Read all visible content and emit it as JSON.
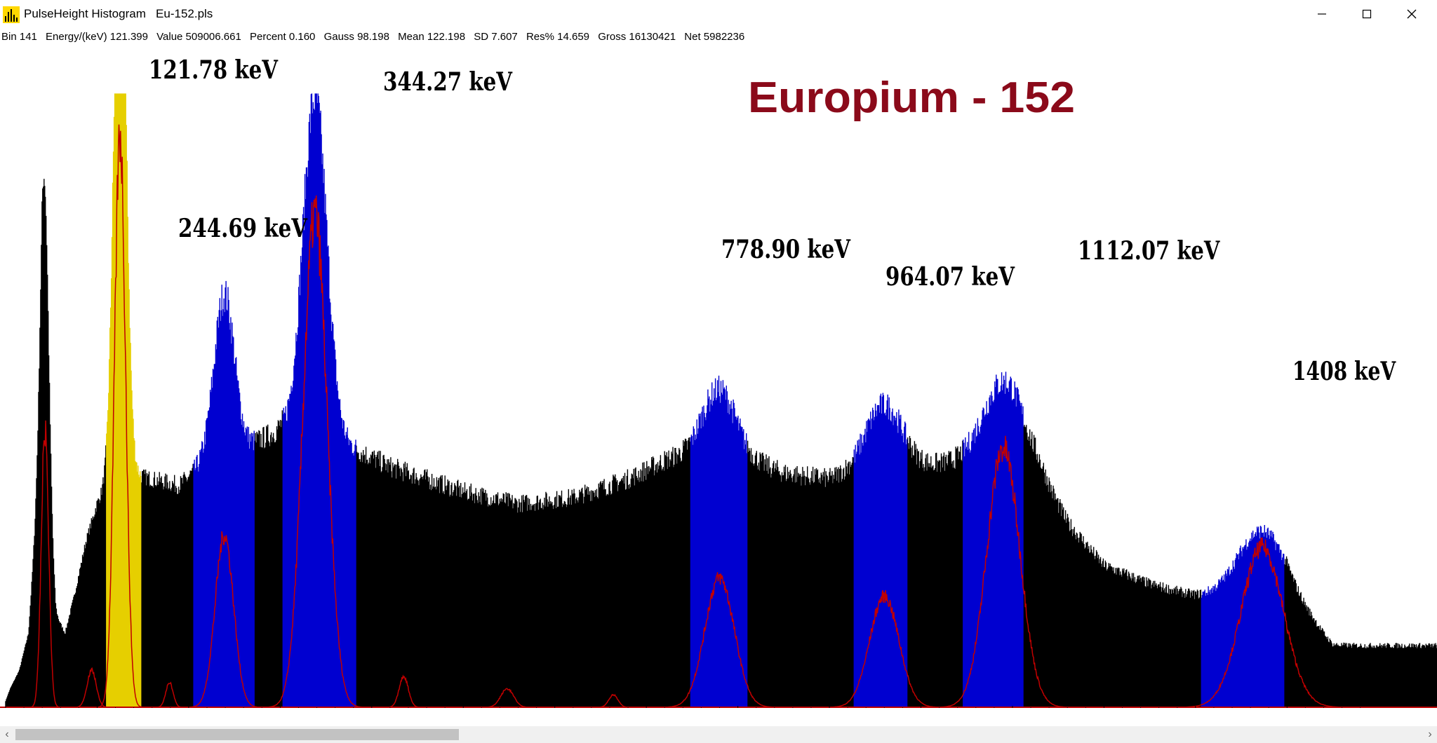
{
  "window": {
    "app_name": "PulseHeight Histogram",
    "file_name": "Eu-152.pls",
    "controls": {
      "minimize": "minimize-icon",
      "maximize": "maximize-icon",
      "close": "close-icon"
    }
  },
  "status": {
    "bin": "Bin 141",
    "energy": "Energy/(keV) 121.399",
    "value": "Value 509006.661",
    "percent": "Percent 0.160",
    "gauss": "Gauss 98.198",
    "mean": "Mean 122.198",
    "sd": "SD 7.607",
    "res": "Res% 14.659",
    "gross": "Gross 16130421",
    "net": "Net 5982236"
  },
  "colors": {
    "background": "#ffffff",
    "spectrum": "#000000",
    "roi": "#0000d0",
    "selected_roi": "#e6cf00",
    "fit_curve": "#c00000",
    "title": "#8b0a1a"
  },
  "chart_data": {
    "type": "area",
    "title": "Europium - 152",
    "xlim": [
      0,
      1450
    ],
    "x_ticks": [
      "0",
      "100",
      "200",
      "300",
      "400",
      "500",
      "600",
      "700",
      "800",
      "900",
      "1000",
      "1100",
      "1200",
      "1300",
      "1400"
    ],
    "x_tick_values": [
      0,
      100,
      200,
      300,
      400,
      500,
      600,
      700,
      800,
      900,
      1000,
      1100,
      1200,
      1300,
      1400
    ],
    "continuum": [
      [
        0,
        0.01
      ],
      [
        5,
        0.03
      ],
      [
        15,
        0.06
      ],
      [
        25,
        0.12
      ],
      [
        34,
        0.32
      ],
      [
        40,
        0.45
      ],
      [
        47,
        0.28
      ],
      [
        55,
        0.15
      ],
      [
        65,
        0.12
      ],
      [
        75,
        0.18
      ],
      [
        88,
        0.27
      ],
      [
        100,
        0.33
      ],
      [
        115,
        0.37
      ],
      [
        135,
        0.38
      ],
      [
        160,
        0.37
      ],
      [
        190,
        0.36
      ],
      [
        220,
        0.4
      ],
      [
        260,
        0.42
      ],
      [
        300,
        0.45
      ],
      [
        340,
        0.44
      ],
      [
        380,
        0.42
      ],
      [
        420,
        0.39
      ],
      [
        460,
        0.37
      ],
      [
        500,
        0.35
      ],
      [
        560,
        0.33
      ],
      [
        620,
        0.34
      ],
      [
        680,
        0.37
      ],
      [
        720,
        0.4
      ],
      [
        760,
        0.42
      ],
      [
        800,
        0.41
      ],
      [
        850,
        0.38
      ],
      [
        900,
        0.37
      ],
      [
        950,
        0.39
      ],
      [
        1000,
        0.39
      ],
      [
        1050,
        0.4
      ],
      [
        1100,
        0.41
      ],
      [
        1130,
        0.38
      ],
      [
        1160,
        0.3
      ],
      [
        1200,
        0.23
      ],
      [
        1250,
        0.2
      ],
      [
        1300,
        0.18
      ],
      [
        1350,
        0.17
      ],
      [
        1400,
        0.16
      ],
      [
        1430,
        0.13
      ],
      [
        1450,
        0.1
      ]
    ],
    "rois": [
      {
        "from": 110,
        "to": 148,
        "selected": true
      },
      {
        "from": 205,
        "to": 272
      },
      {
        "from": 303,
        "to": 383
      },
      {
        "from": 748,
        "to": 810
      },
      {
        "from": 927,
        "to": 985
      },
      {
        "from": 1046,
        "to": 1112
      },
      {
        "from": 1306,
        "to": 1397
      }
    ],
    "peaks": [
      {
        "label": "",
        "center": 43,
        "sigma": 4.5,
        "height": 0.47
      },
      {
        "label": "121.78 keV",
        "center": 125,
        "sigma": 6.5,
        "height": 0.98
      },
      {
        "label": "244.69 keV",
        "center": 239,
        "sigma": 11,
        "height": 0.26
      },
      {
        "label": "344.27 keV",
        "center": 338,
        "sigma": 13,
        "height": 0.55
      },
      {
        "label": "778.90 keV",
        "center": 780,
        "sigma": 17,
        "height": 0.1
      },
      {
        "label": "964.07 keV",
        "center": 960,
        "sigma": 20,
        "height": 0.1
      },
      {
        "label": "1112.07 keV",
        "center": 1090,
        "sigma": 22,
        "height": 0.12
      },
      {
        "label": "1408 keV",
        "center": 1373,
        "sigma": 27,
        "height": 0.12
      }
    ],
    "fit_peaks": [
      {
        "center": 125,
        "sigma": 6,
        "height": 0.93
      },
      {
        "center": 239,
        "sigma": 10,
        "height": 0.28
      },
      {
        "center": 338,
        "sigma": 13,
        "height": 0.8
      },
      {
        "center": 780,
        "sigma": 16,
        "height": 0.21
      },
      {
        "center": 960,
        "sigma": 16,
        "height": 0.18
      },
      {
        "center": 1090,
        "sigma": 18,
        "height": 0.42
      },
      {
        "center": 1373,
        "sigma": 23,
        "height": 0.26
      },
      {
        "center": 43,
        "sigma": 4,
        "height": 0.45
      },
      {
        "center": 94,
        "sigma": 5,
        "height": 0.06
      },
      {
        "center": 179,
        "sigma": 4,
        "height": 0.04
      },
      {
        "center": 435,
        "sigma": 5,
        "height": 0.05
      },
      {
        "center": 548,
        "sigma": 7,
        "height": 0.03
      },
      {
        "center": 664,
        "sigma": 5,
        "height": 0.02
      }
    ]
  }
}
